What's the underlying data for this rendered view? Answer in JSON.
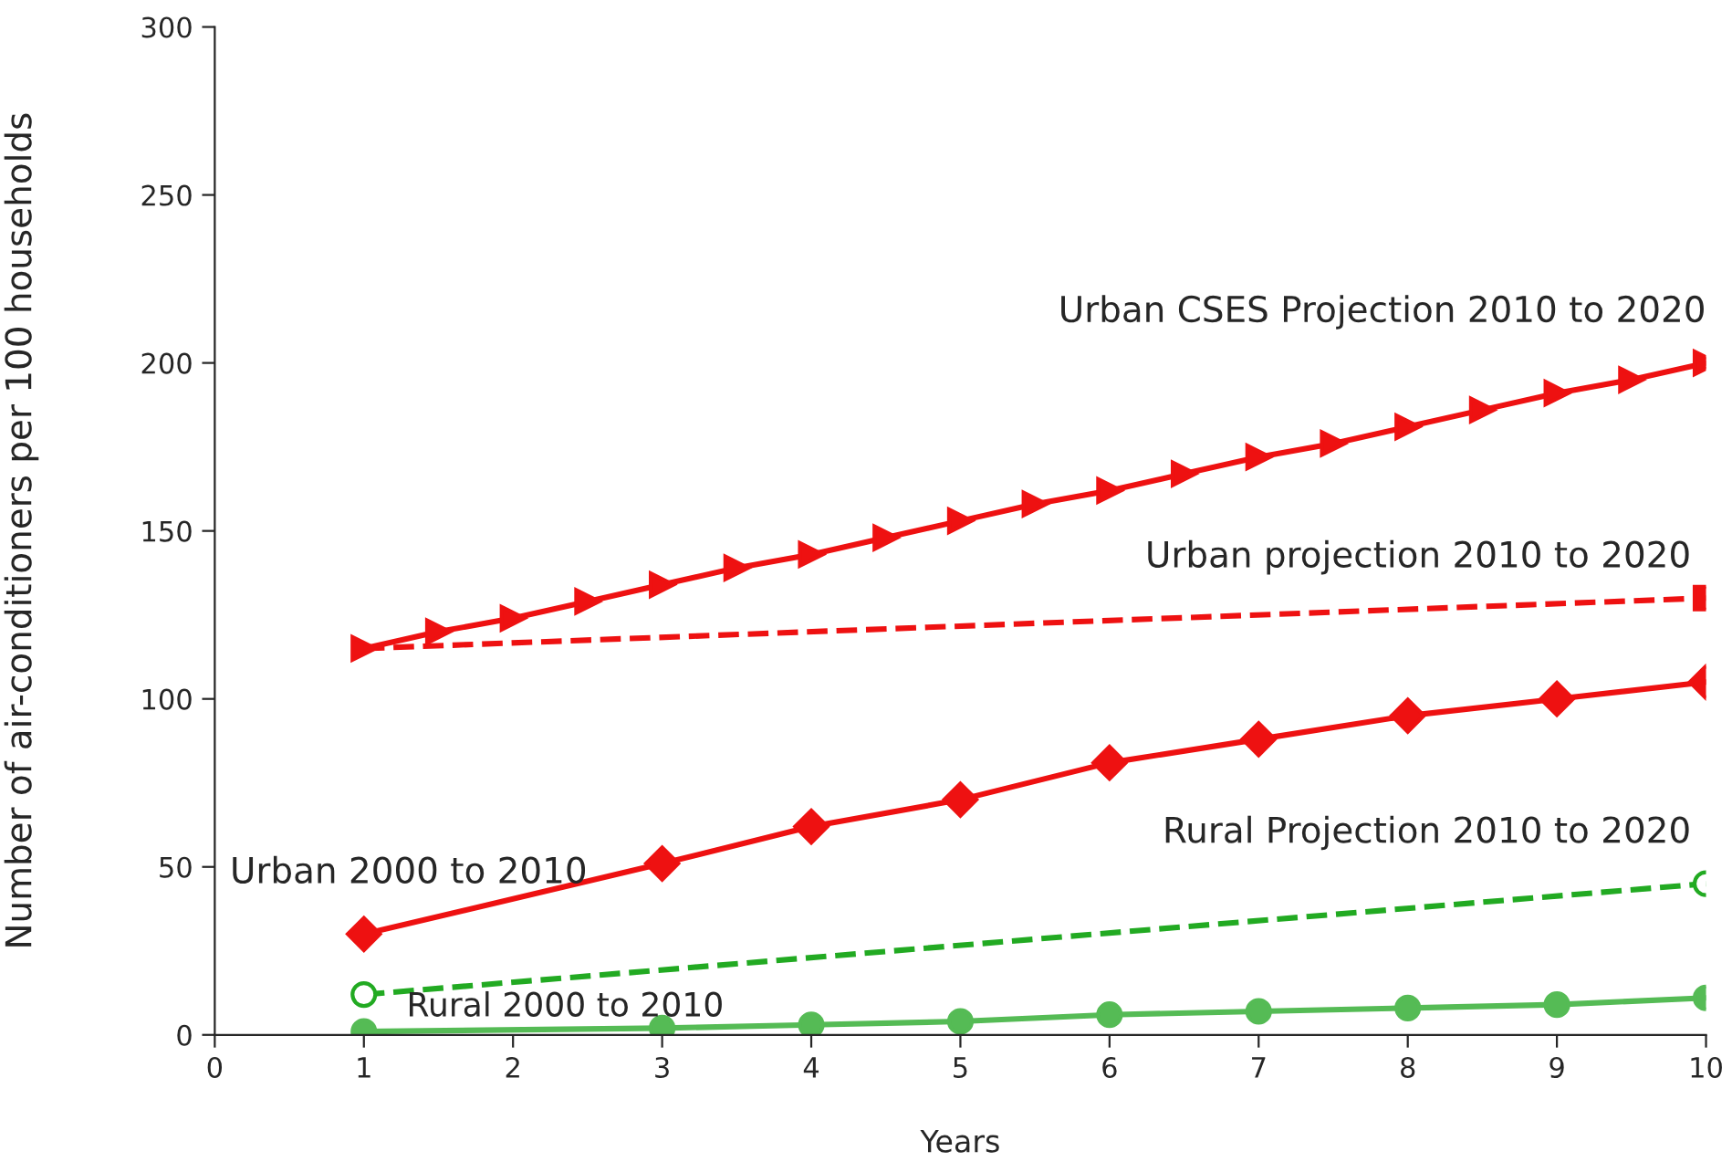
{
  "chart_data": {
    "type": "line",
    "xlabel": "Years",
    "ylabel": "Number of air-conditioners per 100 households",
    "xlim": [
      0,
      10
    ],
    "ylim": [
      0,
      300
    ],
    "xticks": [
      0,
      1,
      2,
      3,
      4,
      5,
      6,
      7,
      8,
      9,
      10
    ],
    "yticks": [
      0,
      50,
      100,
      150,
      200,
      250,
      300
    ],
    "grid": false,
    "legend": false,
    "series": [
      {
        "name": "Urban CSES Projection 2010 to 2020",
        "color": "#ee1111",
        "marker": "triangle",
        "line_style": "solid",
        "x": [
          1,
          1.5,
          2,
          2.5,
          3,
          3.5,
          4,
          4.5,
          5,
          5.5,
          6,
          6.5,
          7,
          7.5,
          8,
          8.5,
          9,
          9.5,
          10
        ],
        "values": [
          115,
          120,
          124,
          129,
          134,
          139,
          143,
          148,
          153,
          158,
          162,
          167,
          172,
          176,
          181,
          186,
          191,
          195,
          200
        ]
      },
      {
        "name": "Urban projection 2010 to 2020",
        "color": "#ee1111",
        "marker": "square",
        "line_style": "dashed",
        "x": [
          1,
          10
        ],
        "values": [
          115,
          130
        ]
      },
      {
        "name": "Urban 2000 to 2010",
        "color": "#ee1111",
        "marker": "diamond",
        "line_style": "solid",
        "x": [
          1,
          3,
          4,
          5,
          6,
          7,
          8,
          9,
          10
        ],
        "values": [
          30,
          51,
          62,
          70,
          81,
          88,
          95,
          100,
          105
        ]
      },
      {
        "name": "Rural Projection 2010 to 2020",
        "color": "#22aa22",
        "marker": "circle",
        "line_style": "dashed",
        "x": [
          1,
          10
        ],
        "values": [
          12,
          45
        ]
      },
      {
        "name": "Rural 2000 to 2010",
        "color": "#55bb55",
        "marker": "circle",
        "line_style": "solid",
        "x": [
          1,
          3,
          4,
          5,
          6,
          7,
          8,
          9,
          10
        ],
        "values": [
          1,
          2,
          3,
          4,
          6,
          7,
          8,
          9,
          11
        ]
      }
    ]
  }
}
